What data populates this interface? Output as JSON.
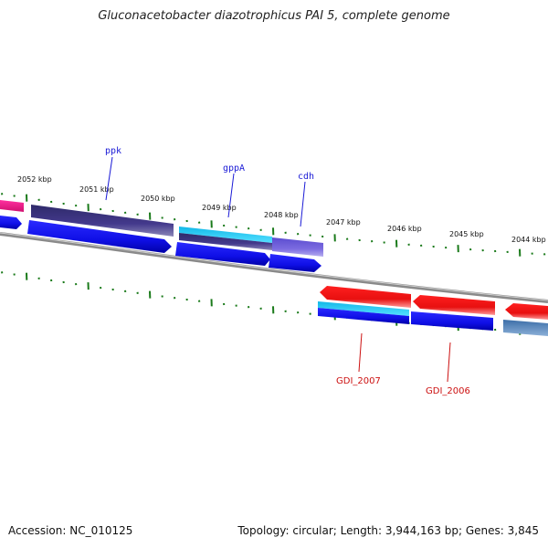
{
  "title": "Gluconacetobacter diazotrophicus PAI 5, complete genome",
  "footer": {
    "accession": "Accession: NC_010125",
    "summary": "Topology: circular; Length: 3,944,163 bp; Genes: 3,845"
  },
  "ticks": [
    "2052 kbp",
    "2051 kbp",
    "2050 kbp",
    "2049 kbp",
    "2048 kbp",
    "2047 kbp",
    "2046 kbp",
    "2045 kbp",
    "2044 kbp"
  ],
  "gene_labels": {
    "ppk": "ppk",
    "gppA": "gppA",
    "cdh": "cdh",
    "gdi2007": "GDI_2007",
    "gdi2006": "GDI_2006"
  },
  "colors": {
    "cds_blue": "#1010ee",
    "gene_dark": "#3f3a80",
    "gene_light_purple": "#7b6adf",
    "gene_cyan": "#22c8ee",
    "gene_red": "#ee1010",
    "gene_pink": "#e8208a",
    "gene_steel": "#4c80b8",
    "backbone": "#808080",
    "tick": "#1a7a1a"
  }
}
